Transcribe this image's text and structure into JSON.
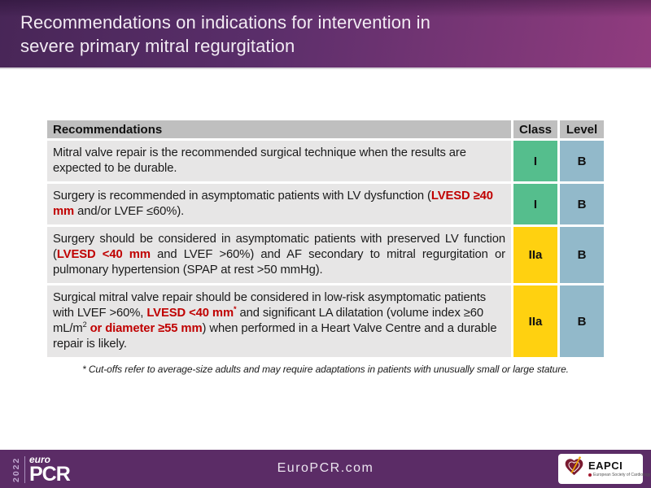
{
  "slide_title": {
    "line1": "Recommendations on indications for intervention in",
    "line2": "severe primary mitral regurgitation"
  },
  "table": {
    "headers": [
      "Recommendations",
      "Class",
      "Level"
    ],
    "rows": [
      {
        "segments": [
          {
            "t": "Mitral valve repair is the recommended surgical technique when the results are expected to be durable."
          }
        ],
        "class_label": "I",
        "level_label": "B",
        "class_color": "#55be8d",
        "level_color": "#92b9ca",
        "justify": false
      },
      {
        "segments": [
          {
            "t": "Surgery is recommended in asymptomatic patients with LV dysfunction ("
          },
          {
            "t": "LVESD ≥40 mm",
            "red": true
          },
          {
            "t": " and/or LVEF ≤60%)."
          }
        ],
        "class_label": "I",
        "level_label": "B",
        "class_color": "#55be8d",
        "level_color": "#92b9ca",
        "justify": false
      },
      {
        "segments": [
          {
            "t": "Surgery should be considered in asymptomatic patients with preserved LV function ("
          },
          {
            "t": "LVESD <40 mm",
            "red": true
          },
          {
            "t": " and LVEF >60%) and AF secondary to mitral regurgitation or pulmonary hypertension (SPAP at rest >50 mmHg)."
          }
        ],
        "class_label": "IIa",
        "level_label": "B",
        "class_color": "#ffd110",
        "level_color": "#92b9ca",
        "justify": true
      },
      {
        "segments": [
          {
            "t": "Surgical mitral valve repair should be considered in low-risk asymptomatic patients with LVEF >60%, "
          },
          {
            "t": "LVESD <40 mm",
            "red": true
          },
          {
            "t": "*",
            "red": true,
            "sup": true
          },
          {
            "t": " and significant LA dilatation (volume index ≥60 mL/m"
          },
          {
            "t": "2",
            "sup": true
          },
          {
            "t": " "
          },
          {
            "t": "or diameter ≥55 mm",
            "red": true
          },
          {
            "t": ") when performed in a Heart Valve Centre and a durable repair is likely."
          }
        ],
        "class_label": "IIa",
        "level_label": "B",
        "class_color": "#ffd110",
        "level_color": "#92b9ca",
        "justify": false
      }
    ]
  },
  "footnote": "* Cut-offs refer to average-size adults and may require adaptations in patients with unusually small or large stature.",
  "footer": {
    "year": "2022",
    "logo_euro": "euro",
    "logo_pcr": "PCR",
    "website": "EuroPCR.com",
    "eapci_name": "EAPCI",
    "eapci_subtext": "European Society of Cardiology"
  },
  "colors": {
    "header_gradient_left": "#482657",
    "header_gradient_right": "#913c7f",
    "table_header_bg": "#bfbfbf",
    "row_bg": "#e7e6e6",
    "class_i_green": "#55be8d",
    "class_iia_yellow": "#ffd110",
    "level_b_blue": "#92b9ca",
    "highlight_red": "#c00000",
    "footer_purple": "#5b2c66"
  }
}
